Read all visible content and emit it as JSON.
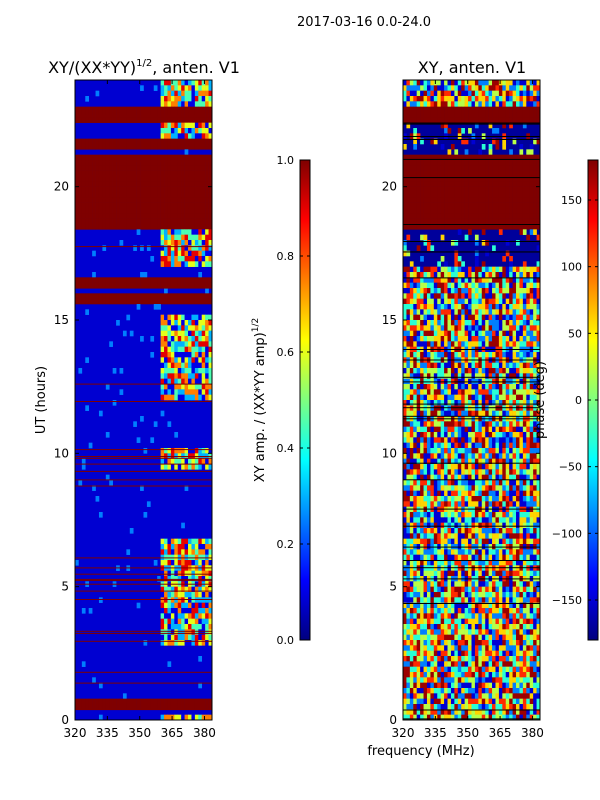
{
  "figure": {
    "suptitle": "2017-03-16 0.0-24.0",
    "shared_xlabel": "frequency (MHz)"
  },
  "colors": {
    "jet": [
      "#00007f",
      "#0000ff",
      "#007fff",
      "#00ffff",
      "#7fff7f",
      "#ffff00",
      "#ff7f00",
      "#ff0000",
      "#7f0000"
    ]
  },
  "chart_data": [
    {
      "type": "heatmap",
      "title_base": "XY/(XX*YY)",
      "title_sup": "1/2",
      "title_tail": ", anten. V1",
      "xlabel": "",
      "ylabel": "UT (hours)",
      "xlim": [
        320,
        383.5
      ],
      "ylim": [
        0,
        24
      ],
      "xticks": [
        320,
        335,
        350,
        365,
        380
      ],
      "yticks": [
        0,
        5,
        10,
        15,
        20
      ],
      "colorbar": {
        "label_base": "XY amp. / (XX*YY amp)",
        "label_sup": "1/2",
        "range": [
          0.0,
          1.0
        ],
        "ticks": [
          "0.0",
          "0.2",
          "0.4",
          "0.6",
          "0.8",
          "1.0"
        ],
        "tick_values": [
          0.0,
          0.2,
          0.4,
          0.6,
          0.8,
          1.0
        ]
      },
      "background_value": 0.08,
      "saturated_bands_ut": [
        [
          0.5,
          0.8
        ],
        [
          22.4,
          23.0
        ],
        [
          18.5,
          21.2
        ],
        [
          15.6,
          16.0
        ],
        [
          16.3,
          16.6
        ],
        [
          21.5,
          21.7
        ]
      ],
      "active_band_mhz": [
        360,
        383.5
      ],
      "active_ut_ranges": [
        [
          0.0,
          0.3
        ],
        [
          2.8,
          6.8
        ],
        [
          9.5,
          10.2
        ],
        [
          12.0,
          15.2
        ],
        [
          17.0,
          18.4
        ],
        [
          21.8,
          23.3
        ],
        [
          23.5,
          24.0
        ]
      ],
      "active_levels": [
        0.1,
        0.3,
        0.45,
        0.6,
        0.75,
        0.9
      ]
    },
    {
      "type": "heatmap",
      "title_base": "XY, anten. V1",
      "title_sup": "",
      "title_tail": "",
      "xlabel": "frequency (MHz)",
      "ylabel": "",
      "xlim": [
        320,
        383.5
      ],
      "ylim": [
        0,
        24
      ],
      "xticks": [
        320,
        335,
        350,
        365,
        380
      ],
      "yticks": [
        0,
        5,
        10,
        15,
        20
      ],
      "colorbar": {
        "label_base": "phase (deg)",
        "label_sup": "",
        "range": [
          -180,
          180
        ],
        "ticks": [
          "−150",
          "−100",
          "−50",
          "0",
          "50",
          "100",
          "150"
        ],
        "tick_values": [
          -150,
          -100,
          -50,
          0,
          50,
          100,
          150
        ]
      },
      "background_value": -170,
      "saturated_bands_ut": [
        [
          18.5,
          21.2
        ],
        [
          22.4,
          23.0
        ]
      ],
      "phase_noise_levels": [
        -150,
        -90,
        -30,
        20,
        60,
        120,
        170
      ]
    }
  ]
}
